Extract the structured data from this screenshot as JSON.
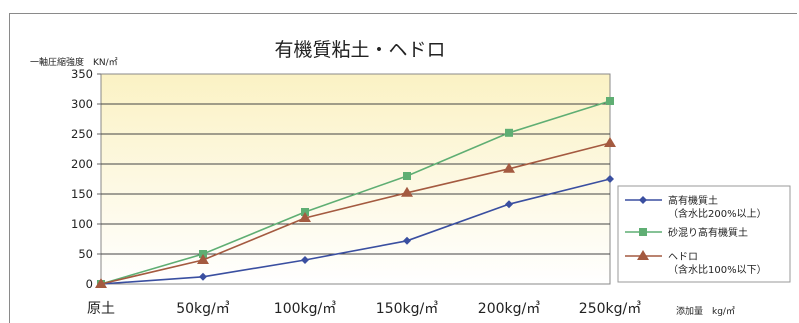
{
  "chart_data": {
    "type": "line",
    "title": "有機質粘土・ヘドロ",
    "ylabel": "一軸圧縮強度　KN/㎡",
    "xlabel": "添加量　kg/㎥",
    "ylim": [
      0,
      350
    ],
    "yticks": [
      0,
      50,
      100,
      150,
      200,
      250,
      300,
      350
    ],
    "categories": [
      "原土",
      "50kg/㎥",
      "100kg/㎥",
      "150kg/㎥",
      "200kg/㎥",
      "250kg/㎥"
    ],
    "grid": true,
    "legend_position": "right",
    "series": [
      {
        "name": "高有機質土",
        "name_line2": "（含水比200%以上）",
        "color": "#3a4fa0",
        "marker": "diamond",
        "values": [
          0,
          12,
          40,
          72,
          133,
          175
        ]
      },
      {
        "name": "砂混り高有機質土",
        "color": "#5fae73",
        "marker": "square",
        "values": [
          0,
          50,
          120,
          180,
          252,
          305
        ]
      },
      {
        "name": "ヘドロ",
        "name_line2": "（含水比100%以下）",
        "color": "#a45a40",
        "marker": "triangle",
        "values": [
          0,
          40,
          110,
          152,
          192,
          235
        ]
      }
    ]
  }
}
